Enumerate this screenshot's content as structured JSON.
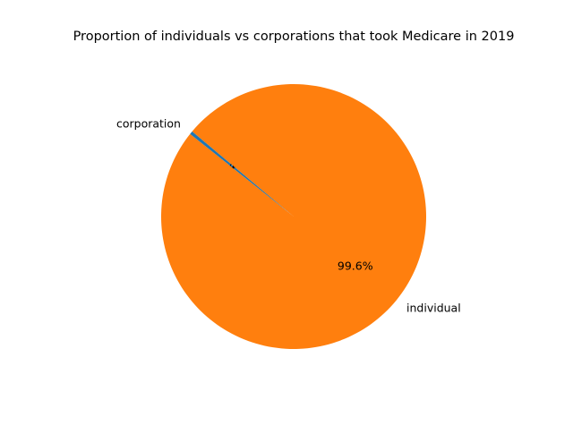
{
  "chart_data": {
    "type": "pie",
    "title": "Proportion of individuals vs corporations that took Medicare in 2019",
    "labels": [
      "corporation",
      "individual"
    ],
    "values": [
      0.4,
      99.6
    ],
    "autopct": [
      "0.4%",
      "99.6%"
    ],
    "colors": [
      "#1f77b4",
      "#ff7f0e"
    ],
    "start_angle_deg": 140,
    "legend": "none"
  }
}
